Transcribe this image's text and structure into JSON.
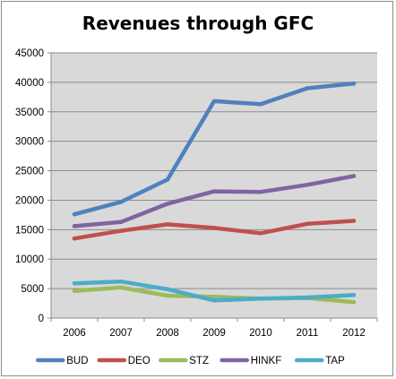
{
  "chart_data": {
    "type": "line",
    "title": "Revenues through GFC",
    "categories": [
      "2006",
      "2007",
      "2008",
      "2009",
      "2010",
      "2011",
      "2012"
    ],
    "ylim": [
      0,
      45000
    ],
    "yticks": [
      "0",
      "5000",
      "10000",
      "15000",
      "20000",
      "25000",
      "30000",
      "35000",
      "40000",
      "45000"
    ],
    "grid": true,
    "legend_position": "bottom",
    "series": [
      {
        "name": "BUD",
        "color": "#4f81bd",
        "values": [
          17600,
          19700,
          23500,
          36800,
          36300,
          39000,
          39800
        ]
      },
      {
        "name": "DEO",
        "color": "#c0504d",
        "values": [
          13500,
          14800,
          15900,
          15300,
          14400,
          16000,
          16500
        ]
      },
      {
        "name": "STZ",
        "color": "#9bbb59",
        "values": [
          4600,
          5200,
          3800,
          3600,
          3300,
          3400,
          2700
        ]
      },
      {
        "name": "HINKF",
        "color": "#8064a2",
        "values": [
          15600,
          16300,
          19400,
          21500,
          21400,
          22600,
          24100
        ]
      },
      {
        "name": "TAP",
        "color": "#4bacc6",
        "values": [
          5900,
          6200,
          4900,
          3000,
          3300,
          3500,
          3900
        ]
      }
    ]
  }
}
